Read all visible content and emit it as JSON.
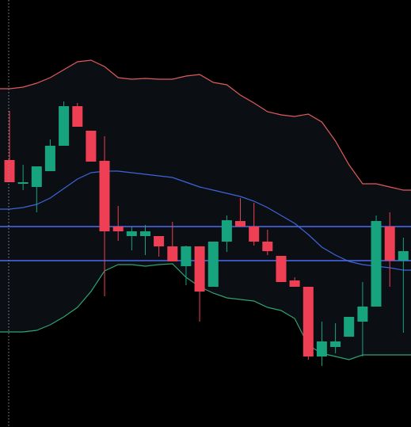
{
  "colors": {
    "background": "#000000",
    "band_fill": "#0b0f14",
    "upper_band": "#e05a5a",
    "middle_band": "#3f63d8",
    "lower_band": "#2fa36f",
    "bull_candle": "#16a37e",
    "bear_candle": "#ef3f55",
    "wick": "#8a8f96",
    "horizontal_line": "#4a6cf0",
    "dotted_guide": "#8a8f96"
  },
  "chart_data": {
    "type": "candlestick",
    "indicator": "bollinger-bands",
    "y_range": [
      -539,
      0
    ],
    "horizontal_levels": [
      -286,
      -329
    ],
    "candles": [
      {
        "o": -202,
        "h": -140,
        "l": -230,
        "c": -230
      },
      {
        "o": -232,
        "h": -208,
        "l": -240,
        "c": -230
      },
      {
        "o": -236,
        "h": -210,
        "l": -268,
        "c": -210
      },
      {
        "o": -216,
        "h": -176,
        "l": -216,
        "c": -184
      },
      {
        "o": -184,
        "h": -128,
        "l": -184,
        "c": -134
      },
      {
        "o": -134,
        "h": -130,
        "l": -160,
        "c": -160
      },
      {
        "o": -165,
        "h": -165,
        "l": -204,
        "c": -204
      },
      {
        "o": -203,
        "h": -172,
        "l": -374,
        "c": -292
      },
      {
        "o": -286,
        "h": -260,
        "l": -304,
        "c": -292
      },
      {
        "o": -298,
        "h": -286,
        "l": -316,
        "c": -292
      },
      {
        "o": -298,
        "h": -284,
        "l": -322,
        "c": -292
      },
      {
        "o": -298,
        "h": -298,
        "l": -324,
        "c": -311
      },
      {
        "o": -311,
        "h": -280,
        "l": -330,
        "c": -330
      },
      {
        "o": -336,
        "h": -310,
        "l": -360,
        "c": -311
      },
      {
        "o": -311,
        "h": -311,
        "l": -406,
        "c": -368
      },
      {
        "o": -362,
        "h": -305,
        "l": -362,
        "c": -305
      },
      {
        "o": -305,
        "h": -272,
        "l": -318,
        "c": -278
      },
      {
        "o": -279,
        "h": -250,
        "l": -286,
        "c": -286
      },
      {
        "o": -286,
        "h": -256,
        "l": -310,
        "c": -305
      },
      {
        "o": -305,
        "h": -290,
        "l": -322,
        "c": -317
      },
      {
        "o": -323,
        "h": -323,
        "l": -356,
        "c": -356
      },
      {
        "o": -354,
        "h": -350,
        "l": -362,
        "c": -362
      },
      {
        "o": -362,
        "h": -362,
        "l": -454,
        "c": -450
      },
      {
        "o": -450,
        "h": -406,
        "l": -462,
        "c": -431
      },
      {
        "o": -438,
        "h": -408,
        "l": -446,
        "c": -431
      },
      {
        "o": -425,
        "h": -400,
        "l": -425,
        "c": -400
      },
      {
        "o": -406,
        "h": -356,
        "l": -450,
        "c": -387
      },
      {
        "o": -387,
        "h": -272,
        "l": -387,
        "c": -279
      },
      {
        "o": -286,
        "h": -268,
        "l": -362,
        "c": -329
      },
      {
        "o": -329,
        "h": -300,
        "l": -420,
        "c": -317
      }
    ],
    "upper_band": [
      -112,
      -110,
      -105,
      -98,
      -88,
      -78,
      -76,
      -84,
      -98,
      -100,
      -99,
      -100,
      -100,
      -96,
      -94,
      -104,
      -107,
      -120,
      -130,
      -141,
      -145,
      -147,
      -144,
      -154,
      -178,
      -208,
      -232,
      -232,
      -236,
      -240
    ],
    "middle_band": [
      -264,
      -262,
      -258,
      -250,
      -238,
      -226,
      -218,
      -216,
      -216,
      -218,
      -220,
      -222,
      -224,
      -230,
      -236,
      -240,
      -244,
      -248,
      -254,
      -262,
      -272,
      -282,
      -296,
      -312,
      -322,
      -330,
      -334,
      -336,
      -338,
      -341
    ],
    "lower_band": [
      -419,
      -419,
      -417,
      -410,
      -400,
      -388,
      -368,
      -342,
      -334,
      -334,
      -336,
      -334,
      -333,
      -350,
      -362,
      -370,
      -376,
      -378,
      -380,
      -388,
      -392,
      -402,
      -436,
      -446,
      -450,
      -454,
      -448,
      -448,
      -448,
      -448
    ]
  }
}
